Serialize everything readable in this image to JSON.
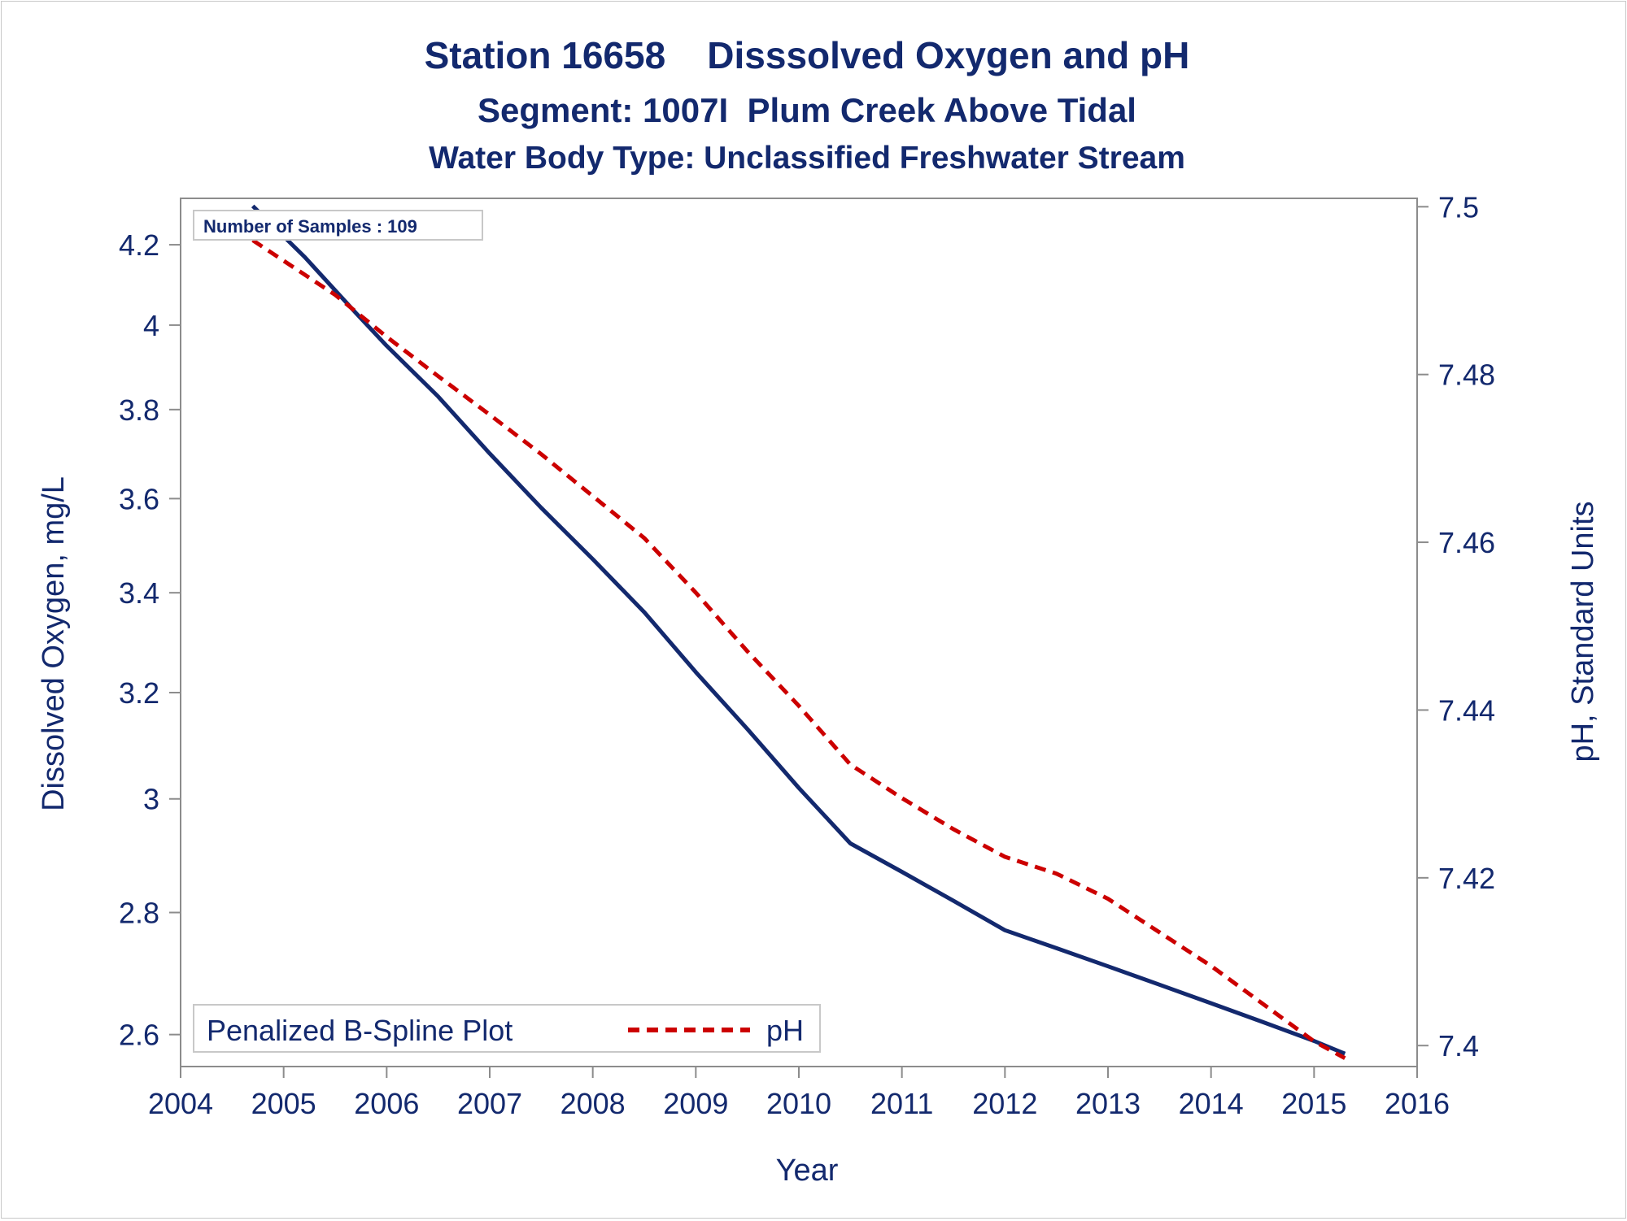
{
  "chart_data": {
    "type": "line",
    "title": "Station 16658    Disssolved Oxygen and pH",
    "subtitle": "Segment: 1007I  Plum Creek Above Tidal",
    "subtitle2": "Water Body Type: Unclassified Freshwater Stream",
    "xlabel": "Year",
    "ylabel": "Dissolved Oxygen, mg/L",
    "y2label": "pH, Standard Units",
    "xlim": [
      2004,
      2016
    ],
    "xticks": [
      2004,
      2005,
      2006,
      2007,
      2008,
      2009,
      2010,
      2011,
      2012,
      2013,
      2014,
      2015,
      2016
    ],
    "ylim": [
      2.55,
      4.32
    ],
    "yscale": "log",
    "yticks": [
      2.6,
      2.8,
      3,
      3.2,
      3.4,
      3.6,
      3.8,
      4,
      4.2
    ],
    "y2lim": [
      7.3975,
      7.501
    ],
    "y2ticks": [
      7.4,
      7.42,
      7.44,
      7.46,
      7.48,
      7.5
    ],
    "sample_count_label": "Number of Samples : 109",
    "legend": {
      "position": "bottom-left",
      "title": "Penalized B-Spline Plot",
      "entries": [
        {
          "name": "pH",
          "color": "#cc0000",
          "style": "dashed"
        }
      ]
    },
    "series": [
      {
        "name": "",
        "axis": "left",
        "color": "#13296e",
        "style": "solid",
        "x": [
          2004.7,
          2005.2,
          2005.7,
          2006.0,
          2006.5,
          2007.0,
          2007.5,
          2008.0,
          2008.5,
          2009.0,
          2009.5,
          2010.0,
          2010.5,
          2011.0,
          2011.5,
          2012.0,
          2012.5,
          2013.0,
          2013.5,
          2014.0,
          2014.5,
          2015.0,
          2015.3
        ],
        "values": [
          4.3,
          4.17,
          4.03,
          3.95,
          3.83,
          3.7,
          3.58,
          3.47,
          3.36,
          3.24,
          3.13,
          3.02,
          2.92,
          2.87,
          2.82,
          2.77,
          2.74,
          2.71,
          2.68,
          2.65,
          2.62,
          2.59,
          2.57
        ]
      },
      {
        "name": "pH",
        "axis": "right",
        "color": "#cc0000",
        "style": "dashed",
        "x": [
          2004.7,
          2005.5,
          2006.0,
          2006.5,
          2007.0,
          2007.5,
          2008.0,
          2008.5,
          2009.0,
          2009.5,
          2010.0,
          2010.5,
          2011.0,
          2011.5,
          2012.0,
          2012.5,
          2013.0,
          2013.5,
          2014.0,
          2014.5,
          2015.0,
          2015.3
        ],
        "values": [
          7.496,
          7.4895,
          7.4845,
          7.4798,
          7.4752,
          7.4705,
          7.4655,
          7.4605,
          7.454,
          7.447,
          7.4405,
          7.4335,
          7.4295,
          7.4258,
          7.4225,
          7.4205,
          7.4175,
          7.4135,
          7.4095,
          7.405,
          7.4005,
          7.3985
        ]
      }
    ]
  }
}
